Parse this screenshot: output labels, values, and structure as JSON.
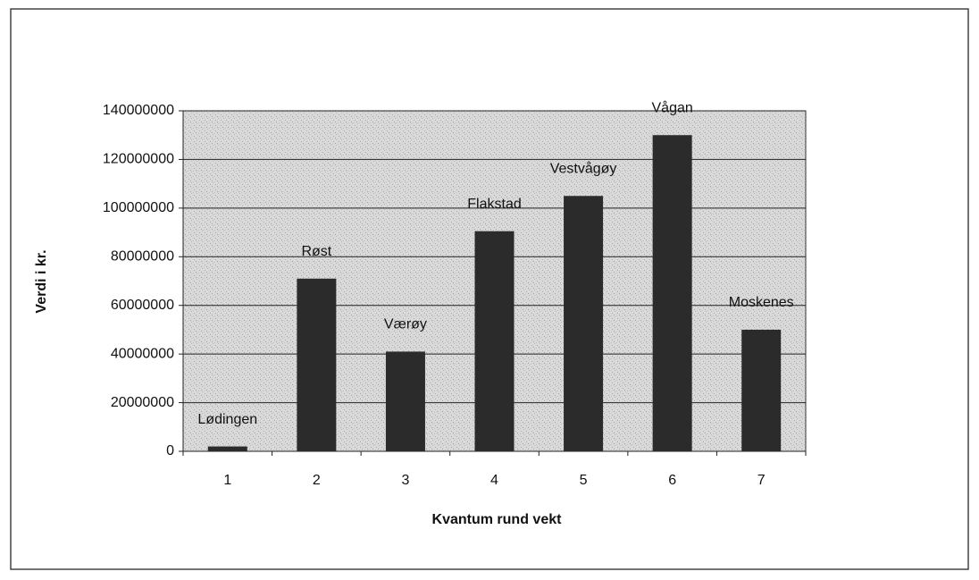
{
  "chart_data": {
    "type": "bar",
    "x_label": "Kvantum rund vekt",
    "y_label": "Verdi i kr.",
    "categories": [
      "1",
      "2",
      "3",
      "4",
      "5",
      "6",
      "7"
    ],
    "values": [
      2000000,
      71000000,
      41000000,
      90500000,
      105000000,
      130000000,
      50000000
    ],
    "bar_labels": [
      "Lødingen",
      "Røst",
      "Værøy",
      "Flakstad",
      "Vestvågøy",
      "Vågan",
      "Moskenes"
    ],
    "color": "#2b2b2b",
    "ylim": [
      0,
      140000000
    ],
    "yticks": [
      0,
      20000000,
      40000000,
      60000000,
      80000000,
      100000000,
      120000000,
      140000000
    ],
    "grid": true
  }
}
